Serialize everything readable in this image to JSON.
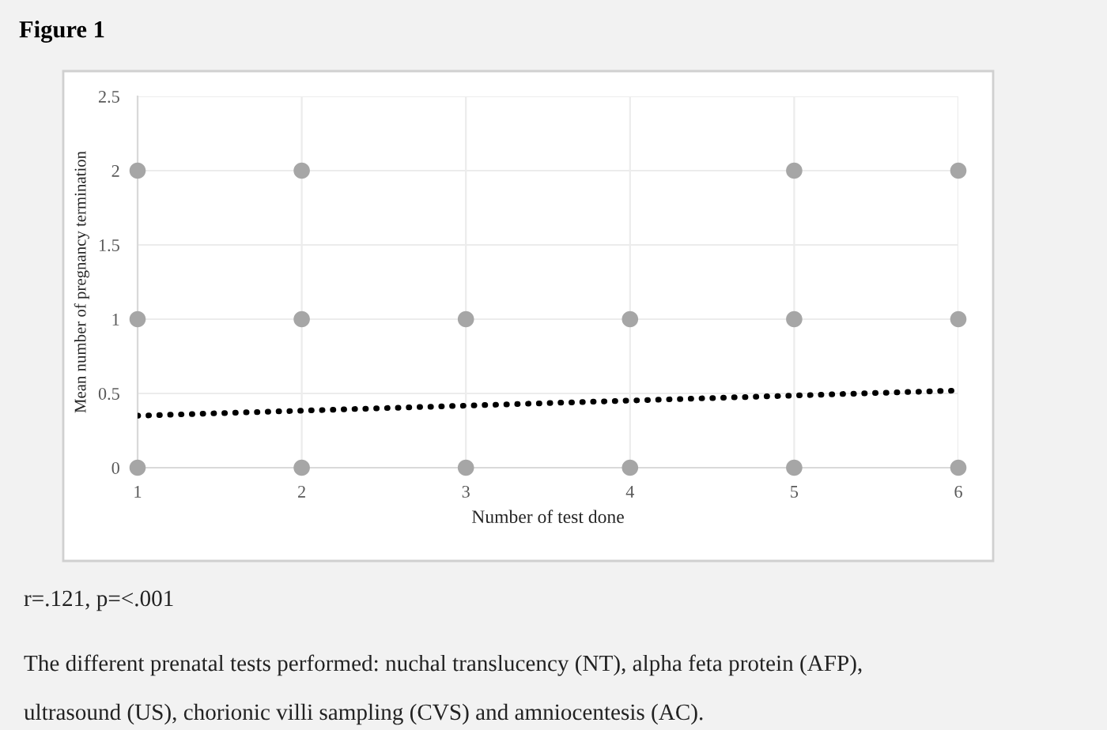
{
  "chart_data": {
    "type": "scatter",
    "title": "Figure 1",
    "xlabel": "Number of test done",
    "ylabel": "Mean number of pregnancy termination",
    "series": [
      {
        "color": "#a6a6a6",
        "x": [
          1,
          1,
          1,
          2,
          2,
          2,
          3,
          3,
          4,
          4,
          5,
          5,
          5,
          6,
          6,
          6
        ],
        "values": [
          0,
          1,
          2,
          0,
          1,
          2,
          0,
          1,
          0,
          1,
          0,
          1,
          2,
          0,
          1,
          2
        ],
        "marker": "circle"
      },
      {
        "type": "line",
        "color": "#000000",
        "x": [
          1,
          6
        ],
        "values": [
          0.35,
          0.52
        ],
        "line_style": "dotted",
        "marker": "none"
      }
    ],
    "xlim": [
      1,
      6
    ],
    "xticks": [
      1,
      2,
      3,
      4,
      5,
      6
    ],
    "ylim": [
      0,
      2.5
    ],
    "yticks": [
      0,
      0.5,
      1,
      1.5,
      2,
      2.5
    ],
    "grid": true,
    "legend": false,
    "annotations": [
      "r=.121, p=<.001",
      "The different prenatal tests performed: nuchal translucency (NT), alpha feta protein (AFP),",
      "ultrasound (US), chorionic villi sampling (CVS) and amniocentesis (AC)."
    ]
  }
}
